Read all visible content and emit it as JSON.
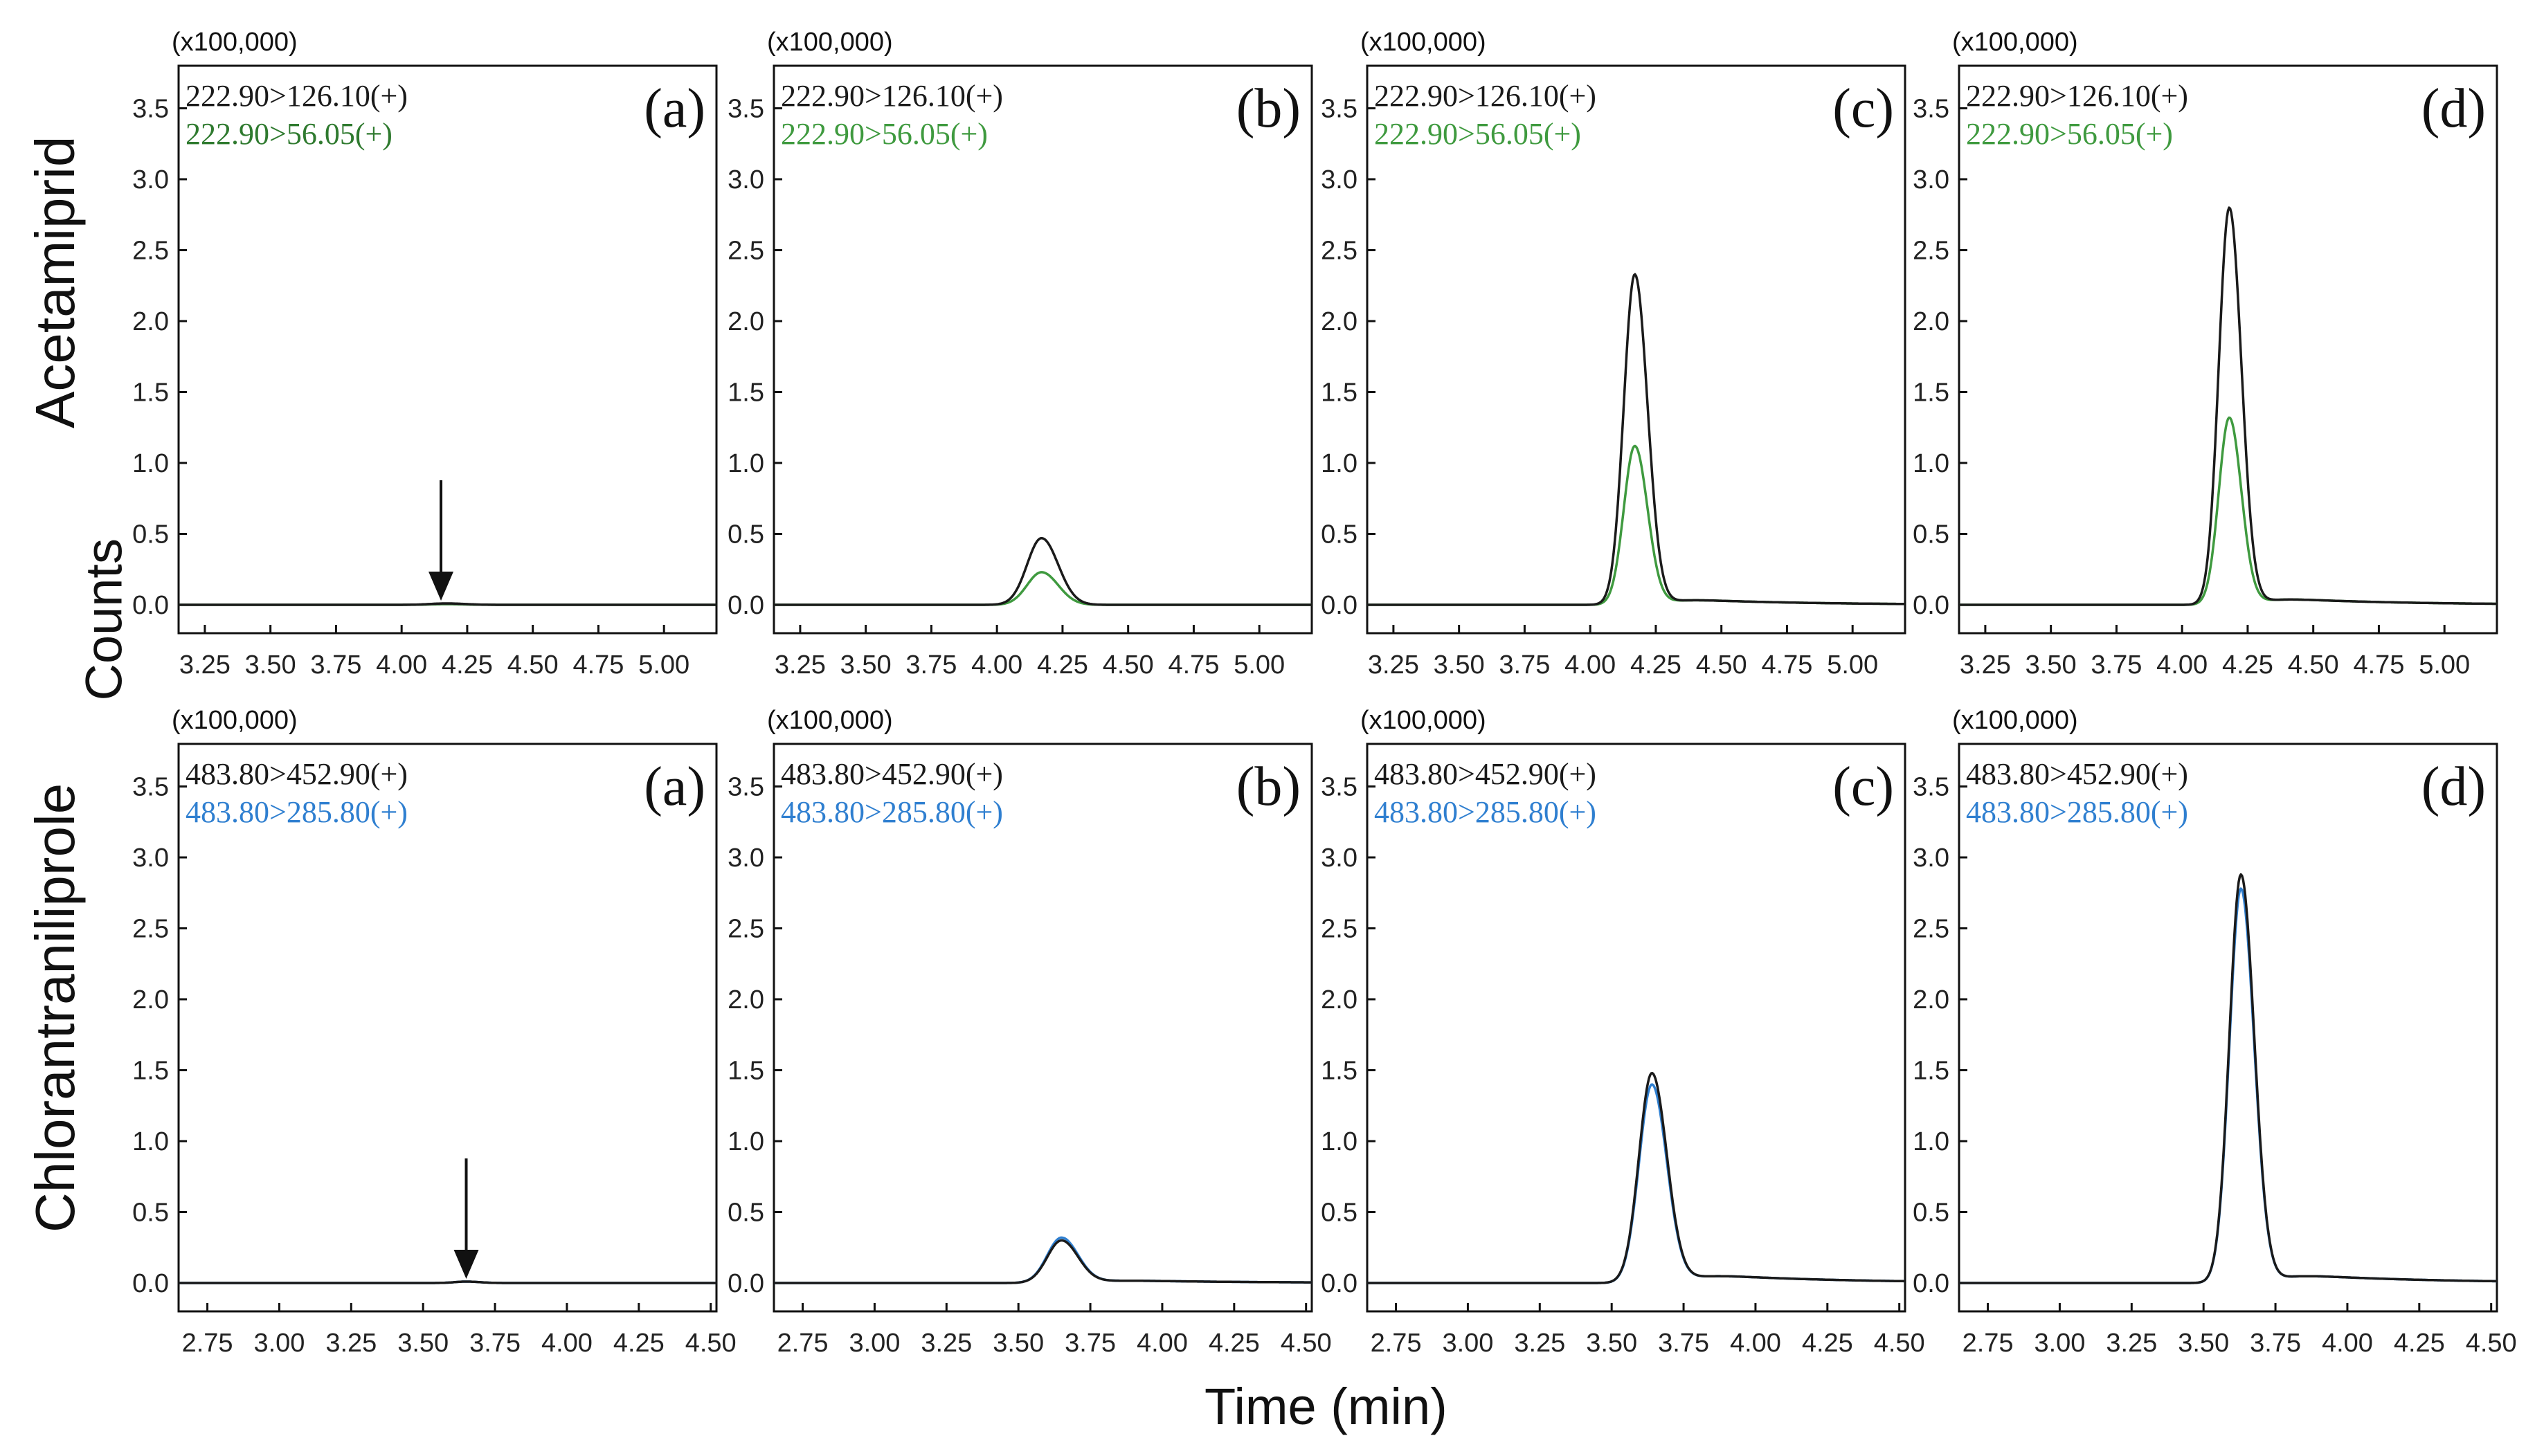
{
  "figure": {
    "row_labels": [
      "Acetamiprid",
      "Chlorantraniliprole"
    ],
    "y_axis_label": "Counts",
    "x_axis_label": "Time (min)"
  },
  "chart_data": [
    {
      "type": "line",
      "panel": "(a)",
      "compound": "Acetamiprid",
      "multiplier": "(x100,000)",
      "xlim": [
        3.15,
        5.2
      ],
      "ylim": [
        -0.2,
        3.8
      ],
      "x_ticks": [
        3.25,
        3.5,
        3.75,
        4.0,
        4.25,
        4.5,
        4.75,
        5.0
      ],
      "x_tick_labels": [
        "3.25",
        "3.50",
        "3.75",
        "4.00",
        "4.25",
        "4.50",
        "4.75",
        "5.00"
      ],
      "y_ticks": [
        0,
        0.5,
        1.0,
        1.5,
        2.0,
        2.5,
        3.0,
        3.5
      ],
      "y_tick_labels": [
        "0.0",
        "0.5",
        "1.0",
        "1.5",
        "2.0",
        "2.5",
        "3.0",
        "3.5"
      ],
      "peak_rt": 4.17,
      "peak_width": 0.06,
      "tail": 0.0,
      "arrow_rt": 4.15,
      "series": [
        {
          "name": "222.90>126.10(+)",
          "color": "#1a1a1a",
          "peak_height": 0.01
        },
        {
          "name": "222.90>56.05(+)",
          "color": "#2f7a2f",
          "peak_height": 0.005
        }
      ]
    },
    {
      "type": "line",
      "panel": "(b)",
      "compound": "Acetamiprid",
      "multiplier": "(x100,000)",
      "xlim": [
        3.15,
        5.2
      ],
      "ylim": [
        -0.2,
        3.8
      ],
      "x_ticks": [
        3.25,
        3.5,
        3.75,
        4.0,
        4.25,
        4.5,
        4.75,
        5.0
      ],
      "x_tick_labels": [
        "3.25",
        "3.50",
        "3.75",
        "4.00",
        "4.25",
        "4.50",
        "4.75",
        "5.00"
      ],
      "y_ticks": [
        0,
        0.5,
        1.0,
        1.5,
        2.0,
        2.5,
        3.0,
        3.5
      ],
      "y_tick_labels": [
        "0.0",
        "0.5",
        "1.0",
        "1.5",
        "2.0",
        "2.5",
        "3.0",
        "3.5"
      ],
      "peak_rt": 4.17,
      "peak_width": 0.055,
      "tail": 0.0,
      "series": [
        {
          "name": "222.90>126.10(+)",
          "color": "#1a1a1a",
          "peak_height": 0.47
        },
        {
          "name": "222.90>56.05(+)",
          "color": "#3f9a3f",
          "peak_height": 0.23
        }
      ]
    },
    {
      "type": "line",
      "panel": "(c)",
      "compound": "Acetamiprid",
      "multiplier": "(x100,000)",
      "xlim": [
        3.15,
        5.2
      ],
      "ylim": [
        -0.2,
        3.8
      ],
      "x_ticks": [
        3.25,
        3.5,
        3.75,
        4.0,
        4.25,
        4.5,
        4.75,
        5.0
      ],
      "x_tick_labels": [
        "3.25",
        "3.50",
        "3.75",
        "4.00",
        "4.25",
        "4.50",
        "4.75",
        "5.00"
      ],
      "y_ticks": [
        0,
        0.5,
        1.0,
        1.5,
        2.0,
        2.5,
        3.0,
        3.5
      ],
      "y_tick_labels": [
        "0.0",
        "0.5",
        "1.0",
        "1.5",
        "2.0",
        "2.5",
        "3.0",
        "3.5"
      ],
      "peak_rt": 4.17,
      "peak_width": 0.042,
      "tail": 0.06,
      "series": [
        {
          "name": "222.90>126.10(+)",
          "color": "#1a1a1a",
          "peak_height": 2.33
        },
        {
          "name": "222.90>56.05(+)",
          "color": "#3f9a3f",
          "peak_height": 1.12
        }
      ]
    },
    {
      "type": "line",
      "panel": "(d)",
      "compound": "Acetamiprid",
      "multiplier": "(x100,000)",
      "xlim": [
        3.15,
        5.2
      ],
      "ylim": [
        -0.2,
        3.8
      ],
      "x_ticks": [
        3.25,
        3.5,
        3.75,
        4.0,
        4.25,
        4.5,
        4.75,
        5.0
      ],
      "x_tick_labels": [
        "3.25",
        "3.50",
        "3.75",
        "4.00",
        "4.25",
        "4.50",
        "4.75",
        "5.00"
      ],
      "y_ticks": [
        0,
        0.5,
        1.0,
        1.5,
        2.0,
        2.5,
        3.0,
        3.5
      ],
      "y_tick_labels": [
        "0.0",
        "0.5",
        "1.0",
        "1.5",
        "2.0",
        "2.5",
        "3.0",
        "3.5"
      ],
      "peak_rt": 4.18,
      "peak_width": 0.04,
      "tail": 0.07,
      "series": [
        {
          "name": "222.90>126.10(+)",
          "color": "#1a1a1a",
          "peak_height": 2.8
        },
        {
          "name": "222.90>56.05(+)",
          "color": "#3f9a3f",
          "peak_height": 1.32
        }
      ]
    },
    {
      "type": "line",
      "panel": "(a)",
      "compound": "Chlorantraniliprole",
      "multiplier": "(x100,000)",
      "xlim": [
        2.65,
        4.52
      ],
      "ylim": [
        -0.2,
        3.8
      ],
      "x_ticks": [
        2.75,
        3.0,
        3.25,
        3.5,
        3.75,
        4.0,
        4.25,
        4.5
      ],
      "x_tick_labels": [
        "2.75",
        "3.00",
        "3.25",
        "3.50",
        "3.75",
        "4.00",
        "4.25",
        "4.50"
      ],
      "y_ticks": [
        0,
        0.5,
        1.0,
        1.5,
        2.0,
        2.5,
        3.0,
        3.5
      ],
      "y_tick_labels": [
        "0.0",
        "0.5",
        "1.0",
        "1.5",
        "2.0",
        "2.5",
        "3.0",
        "3.5"
      ],
      "peak_rt": 3.65,
      "peak_width": 0.04,
      "tail": 0.0,
      "arrow_rt": 3.65,
      "series": [
        {
          "name": "483.80>452.90(+)",
          "color": "#1a1a1a",
          "peak_height": 0.01
        },
        {
          "name": "483.80>285.80(+)",
          "color": "#2f7fd0",
          "peak_height": 0.01
        }
      ]
    },
    {
      "type": "line",
      "panel": "(b)",
      "compound": "Chlorantraniliprole",
      "multiplier": "(x100,000)",
      "xlim": [
        2.65,
        4.52
      ],
      "ylim": [
        -0.2,
        3.8
      ],
      "x_ticks": [
        2.75,
        3.0,
        3.25,
        3.5,
        3.75,
        4.0,
        4.25,
        4.5
      ],
      "x_tick_labels": [
        "2.75",
        "3.00",
        "3.25",
        "3.50",
        "3.75",
        "4.00",
        "4.25",
        "4.50"
      ],
      "y_ticks": [
        0,
        0.5,
        1.0,
        1.5,
        2.0,
        2.5,
        3.0,
        3.5
      ],
      "y_tick_labels": [
        "0.0",
        "0.5",
        "1.0",
        "1.5",
        "2.0",
        "2.5",
        "3.0",
        "3.5"
      ],
      "peak_rt": 3.65,
      "peak_width": 0.05,
      "tail": 0.03,
      "series": [
        {
          "name": "483.80>452.90(+)",
          "color": "#1a1a1a",
          "peak_height": 0.3
        },
        {
          "name": "483.80>285.80(+)",
          "color": "#2f7fd0",
          "peak_height": 0.32
        }
      ]
    },
    {
      "type": "line",
      "panel": "(c)",
      "compound": "Chlorantraniliprole",
      "multiplier": "(x100,000)",
      "xlim": [
        2.65,
        4.52
      ],
      "ylim": [
        -0.2,
        3.8
      ],
      "x_ticks": [
        2.75,
        3.0,
        3.25,
        3.5,
        3.75,
        4.0,
        4.25,
        4.5
      ],
      "x_tick_labels": [
        "2.75",
        "3.00",
        "3.25",
        "3.50",
        "3.75",
        "4.00",
        "4.25",
        "4.50"
      ],
      "y_ticks": [
        0,
        0.5,
        1.0,
        1.5,
        2.0,
        2.5,
        3.0,
        3.5
      ],
      "y_tick_labels": [
        "0.0",
        "0.5",
        "1.0",
        "1.5",
        "2.0",
        "2.5",
        "3.0",
        "3.5"
      ],
      "peak_rt": 3.64,
      "peak_width": 0.045,
      "tail": 0.09,
      "series": [
        {
          "name": "483.80>452.90(+)",
          "color": "#1a1a1a",
          "peak_height": 1.48
        },
        {
          "name": "483.80>285.80(+)",
          "color": "#2f7fd0",
          "peak_height": 1.4
        }
      ]
    },
    {
      "type": "line",
      "panel": "(d)",
      "compound": "Chlorantraniliprole",
      "multiplier": "(x100,000)",
      "xlim": [
        2.65,
        4.52
      ],
      "ylim": [
        -0.2,
        3.8
      ],
      "x_ticks": [
        2.75,
        3.0,
        3.25,
        3.5,
        3.75,
        4.0,
        4.25,
        4.5
      ],
      "x_tick_labels": [
        "2.75",
        "3.00",
        "3.25",
        "3.50",
        "3.75",
        "4.00",
        "4.25",
        "4.50"
      ],
      "y_ticks": [
        0,
        0.5,
        1.0,
        1.5,
        2.0,
        2.5,
        3.0,
        3.5
      ],
      "y_tick_labels": [
        "0.0",
        "0.5",
        "1.0",
        "1.5",
        "2.0",
        "2.5",
        "3.0",
        "3.5"
      ],
      "peak_rt": 3.63,
      "peak_width": 0.04,
      "tail": 0.09,
      "series": [
        {
          "name": "483.80>452.90(+)",
          "color": "#1a1a1a",
          "peak_height": 2.88
        },
        {
          "name": "483.80>285.80(+)",
          "color": "#2f7fd0",
          "peak_height": 2.78
        }
      ]
    }
  ]
}
